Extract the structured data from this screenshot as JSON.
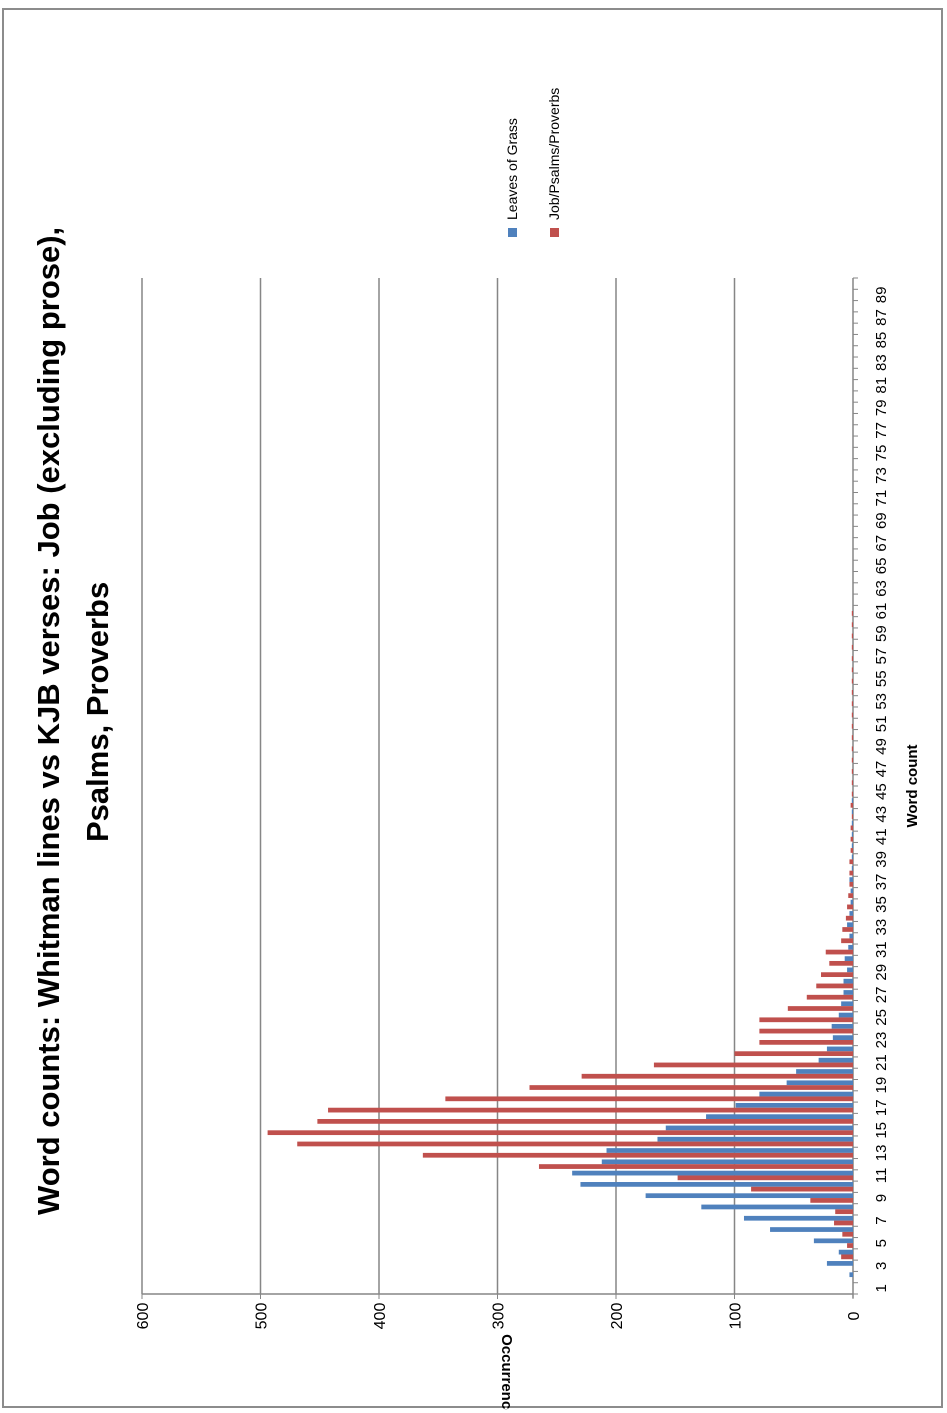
{
  "chart_data": {
    "type": "bar",
    "orientation": "rotated-90-ccw",
    "title_lines": [
      "Word counts: Whitman lines vs KJB verses: Job (excluding prose),",
      "Psalms, Proverbs"
    ],
    "xlabel": "Word count",
    "ylabel": "Occurrences",
    "ylim": [
      0,
      600
    ],
    "yticks": [
      0,
      100,
      200,
      300,
      400,
      500,
      600
    ],
    "x_categories_count": 90,
    "x_tick_labels": [
      "1",
      "3",
      "5",
      "7",
      "9",
      "11",
      "13",
      "15",
      "17",
      "19",
      "21",
      "23",
      "25",
      "27",
      "29",
      "31",
      "33",
      "35",
      "37",
      "39",
      "41",
      "43",
      "45",
      "47",
      "49",
      "51",
      "53",
      "55",
      "57",
      "59",
      "61",
      "63",
      "65",
      "67",
      "69",
      "71",
      "73",
      "75",
      "77",
      "79",
      "81",
      "83",
      "85",
      "87",
      "89"
    ],
    "grid": true,
    "legend_position": "top-right",
    "series": [
      {
        "name": "Leaves of Grass",
        "color": "#4f81bd",
        "values": [
          0,
          3,
          22,
          12,
          33,
          70,
          92,
          128,
          175,
          230,
          237,
          212,
          208,
          165,
          158,
          124,
          99,
          79,
          56,
          48,
          29,
          22,
          17,
          18,
          12,
          10,
          8,
          8,
          5,
          7,
          4,
          3,
          5,
          3,
          2,
          2,
          3,
          1,
          1,
          1,
          1,
          1,
          1,
          1,
          0,
          0,
          0,
          0,
          0,
          0,
          0,
          0,
          0,
          0,
          0,
          0,
          0,
          0,
          0,
          0,
          0,
          0,
          0,
          0,
          0,
          0,
          0,
          0,
          0,
          0,
          0,
          0,
          0,
          0,
          0,
          0,
          0,
          0,
          0,
          0,
          0,
          0,
          0,
          0,
          0,
          0,
          0,
          0,
          0,
          0
        ]
      },
      {
        "name": "Job/Psalms/Proverbs",
        "color": "#c0504d",
        "values": [
          0,
          0,
          0,
          10,
          5,
          9,
          16,
          15,
          36,
          86,
          148,
          265,
          363,
          469,
          494,
          452,
          443,
          344,
          273,
          229,
          168,
          100,
          79,
          79,
          79,
          55,
          39,
          31,
          27,
          20,
          23,
          10,
          9,
          6,
          5,
          4,
          3,
          3,
          3,
          2,
          2,
          2,
          1,
          2,
          1,
          1,
          1,
          1,
          1,
          1,
          1,
          1,
          1,
          1,
          1,
          1,
          1,
          1,
          1,
          1,
          1,
          0,
          0,
          0,
          0,
          0,
          0,
          0,
          0,
          0,
          0,
          0,
          0,
          0,
          0,
          0,
          0,
          0,
          0,
          0,
          0,
          0,
          0,
          0,
          0,
          0,
          0,
          0,
          0,
          0
        ]
      }
    ]
  }
}
